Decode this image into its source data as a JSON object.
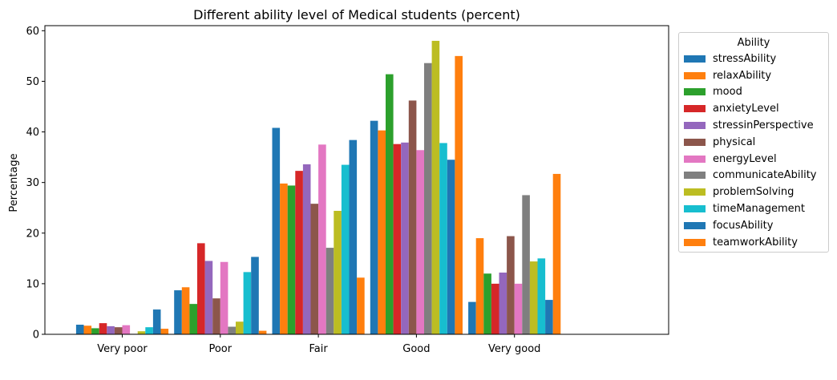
{
  "chart_data": {
    "type": "bar",
    "title": "Different ability level of Medical students (percent)",
    "xlabel": "",
    "ylabel": "Percentage",
    "ylim": [
      0,
      61
    ],
    "yticks": [
      0,
      10,
      20,
      30,
      40,
      50,
      60
    ],
    "categories": [
      "Very poor",
      "Poor",
      "Fair",
      "Good",
      "Very good"
    ],
    "legend": {
      "title": "Ability",
      "position": "outside-right"
    },
    "series": [
      {
        "name": "stressAbility",
        "color": "#1f77b4",
        "values": [
          1.9,
          8.7,
          40.8,
          42.2,
          6.4
        ]
      },
      {
        "name": "relaxAbility",
        "color": "#ff7f0e",
        "values": [
          1.7,
          9.3,
          29.8,
          40.3,
          19.0
        ]
      },
      {
        "name": "mood",
        "color": "#2ca02c",
        "values": [
          1.2,
          6.0,
          29.4,
          51.4,
          12.0
        ]
      },
      {
        "name": "anxietyLevel",
        "color": "#d62728",
        "values": [
          2.2,
          18.0,
          32.3,
          37.6,
          10.0
        ]
      },
      {
        "name": "stressinPerspective",
        "color": "#9467bd",
        "values": [
          1.6,
          14.5,
          33.6,
          37.9,
          12.2
        ]
      },
      {
        "name": "physical",
        "color": "#8c564b",
        "values": [
          1.4,
          7.1,
          25.8,
          46.2,
          19.4
        ]
      },
      {
        "name": "energyLevel",
        "color": "#e377c2",
        "values": [
          1.8,
          14.3,
          37.5,
          36.4,
          10.0
        ]
      },
      {
        "name": "communicateAbility",
        "color": "#7f7f7f",
        "values": [
          0.1,
          1.5,
          17.1,
          53.6,
          27.5
        ]
      },
      {
        "name": "problemSolving",
        "color": "#bcbd22",
        "values": [
          0.6,
          2.5,
          24.4,
          58.0,
          14.4
        ]
      },
      {
        "name": "timeManagement",
        "color": "#17becf",
        "values": [
          1.4,
          12.3,
          33.5,
          37.8,
          15.0
        ]
      },
      {
        "name": "focusAbility",
        "color": "#1f77b4",
        "values": [
          4.9,
          15.3,
          38.4,
          34.5,
          6.8
        ]
      },
      {
        "name": "teamworkAbility",
        "color": "#ff7f0e",
        "values": [
          1.1,
          0.7,
          11.2,
          55.0,
          31.7
        ]
      }
    ]
  }
}
